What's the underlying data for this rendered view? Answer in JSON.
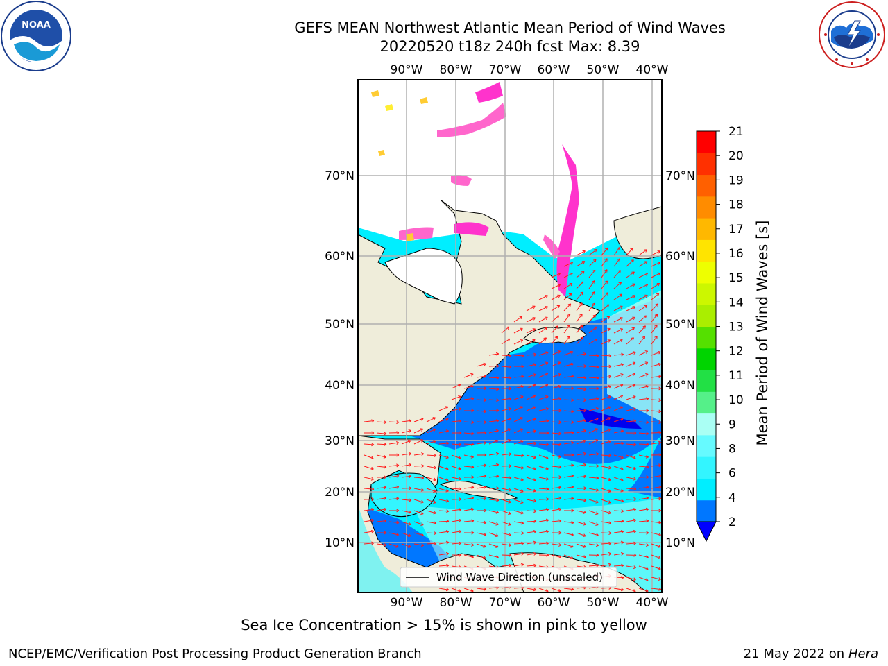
{
  "header": {
    "title_line1": "GEFS MEAN Northwest Atlantic Mean Period of Wind Waves",
    "title_line2": "20220520 t18z 240h fcst   Max: 8.39"
  },
  "logos": {
    "left": {
      "icon": "noaa-logo",
      "text": "NOAA"
    },
    "right": {
      "icon": "national-weather-service-logo"
    }
  },
  "map": {
    "projection": "lat-lon",
    "lon_labels_top": [
      "90°W",
      "80°W",
      "70°W",
      "60°W",
      "50°W",
      "40°W"
    ],
    "lon_labels_bottom": [
      "90°W",
      "80°W",
      "70°W",
      "60°W",
      "50°W",
      "40°W"
    ],
    "lat_labels_left": [
      "70°N",
      "60°N",
      "50°N",
      "40°N",
      "30°N",
      "20°N",
      "10°N"
    ],
    "lat_labels_right": [
      "70°N",
      "60°N",
      "50°N",
      "40°N",
      "30°N",
      "20°N",
      "10°N"
    ],
    "land_color": "#efedda",
    "ice_colors": [
      "#ff33cc",
      "#ff66cc",
      "#ffcc33",
      "#ffee33"
    ],
    "vector_color": "#ff1a1a",
    "legend": {
      "label": "Wind Wave Direction (unscaled)",
      "placement": "bottom-center"
    }
  },
  "colorbar": {
    "label": "Mean Period of Wind Waves [s]",
    "tick_labels": [
      "2",
      "4",
      "6",
      "8",
      "9",
      "10",
      "11",
      "12",
      "13",
      "14",
      "15",
      "16",
      "17",
      "18",
      "19",
      "20",
      "21"
    ],
    "colors": [
      "#0077ff",
      "#00eeff",
      "#33f5ff",
      "#66faff",
      "#aafff4",
      "#55f089",
      "#22e045",
      "#00d400",
      "#55e000",
      "#aaee00",
      "#ccf700",
      "#eeff00",
      "#ffe400",
      "#ffb800",
      "#ff8c00",
      "#ff6000",
      "#ff3000",
      "#ff0000"
    ],
    "under_color": "#0000ff",
    "extend": "min"
  },
  "notes": {
    "sea_ice": "Sea Ice Concentration > 15% is shown in pink to yellow"
  },
  "footer": {
    "left": "NCEP/EMC/Verification Post Processing Product Generation Branch",
    "date": "21 May 2022 on",
    "machine": "Hera"
  }
}
